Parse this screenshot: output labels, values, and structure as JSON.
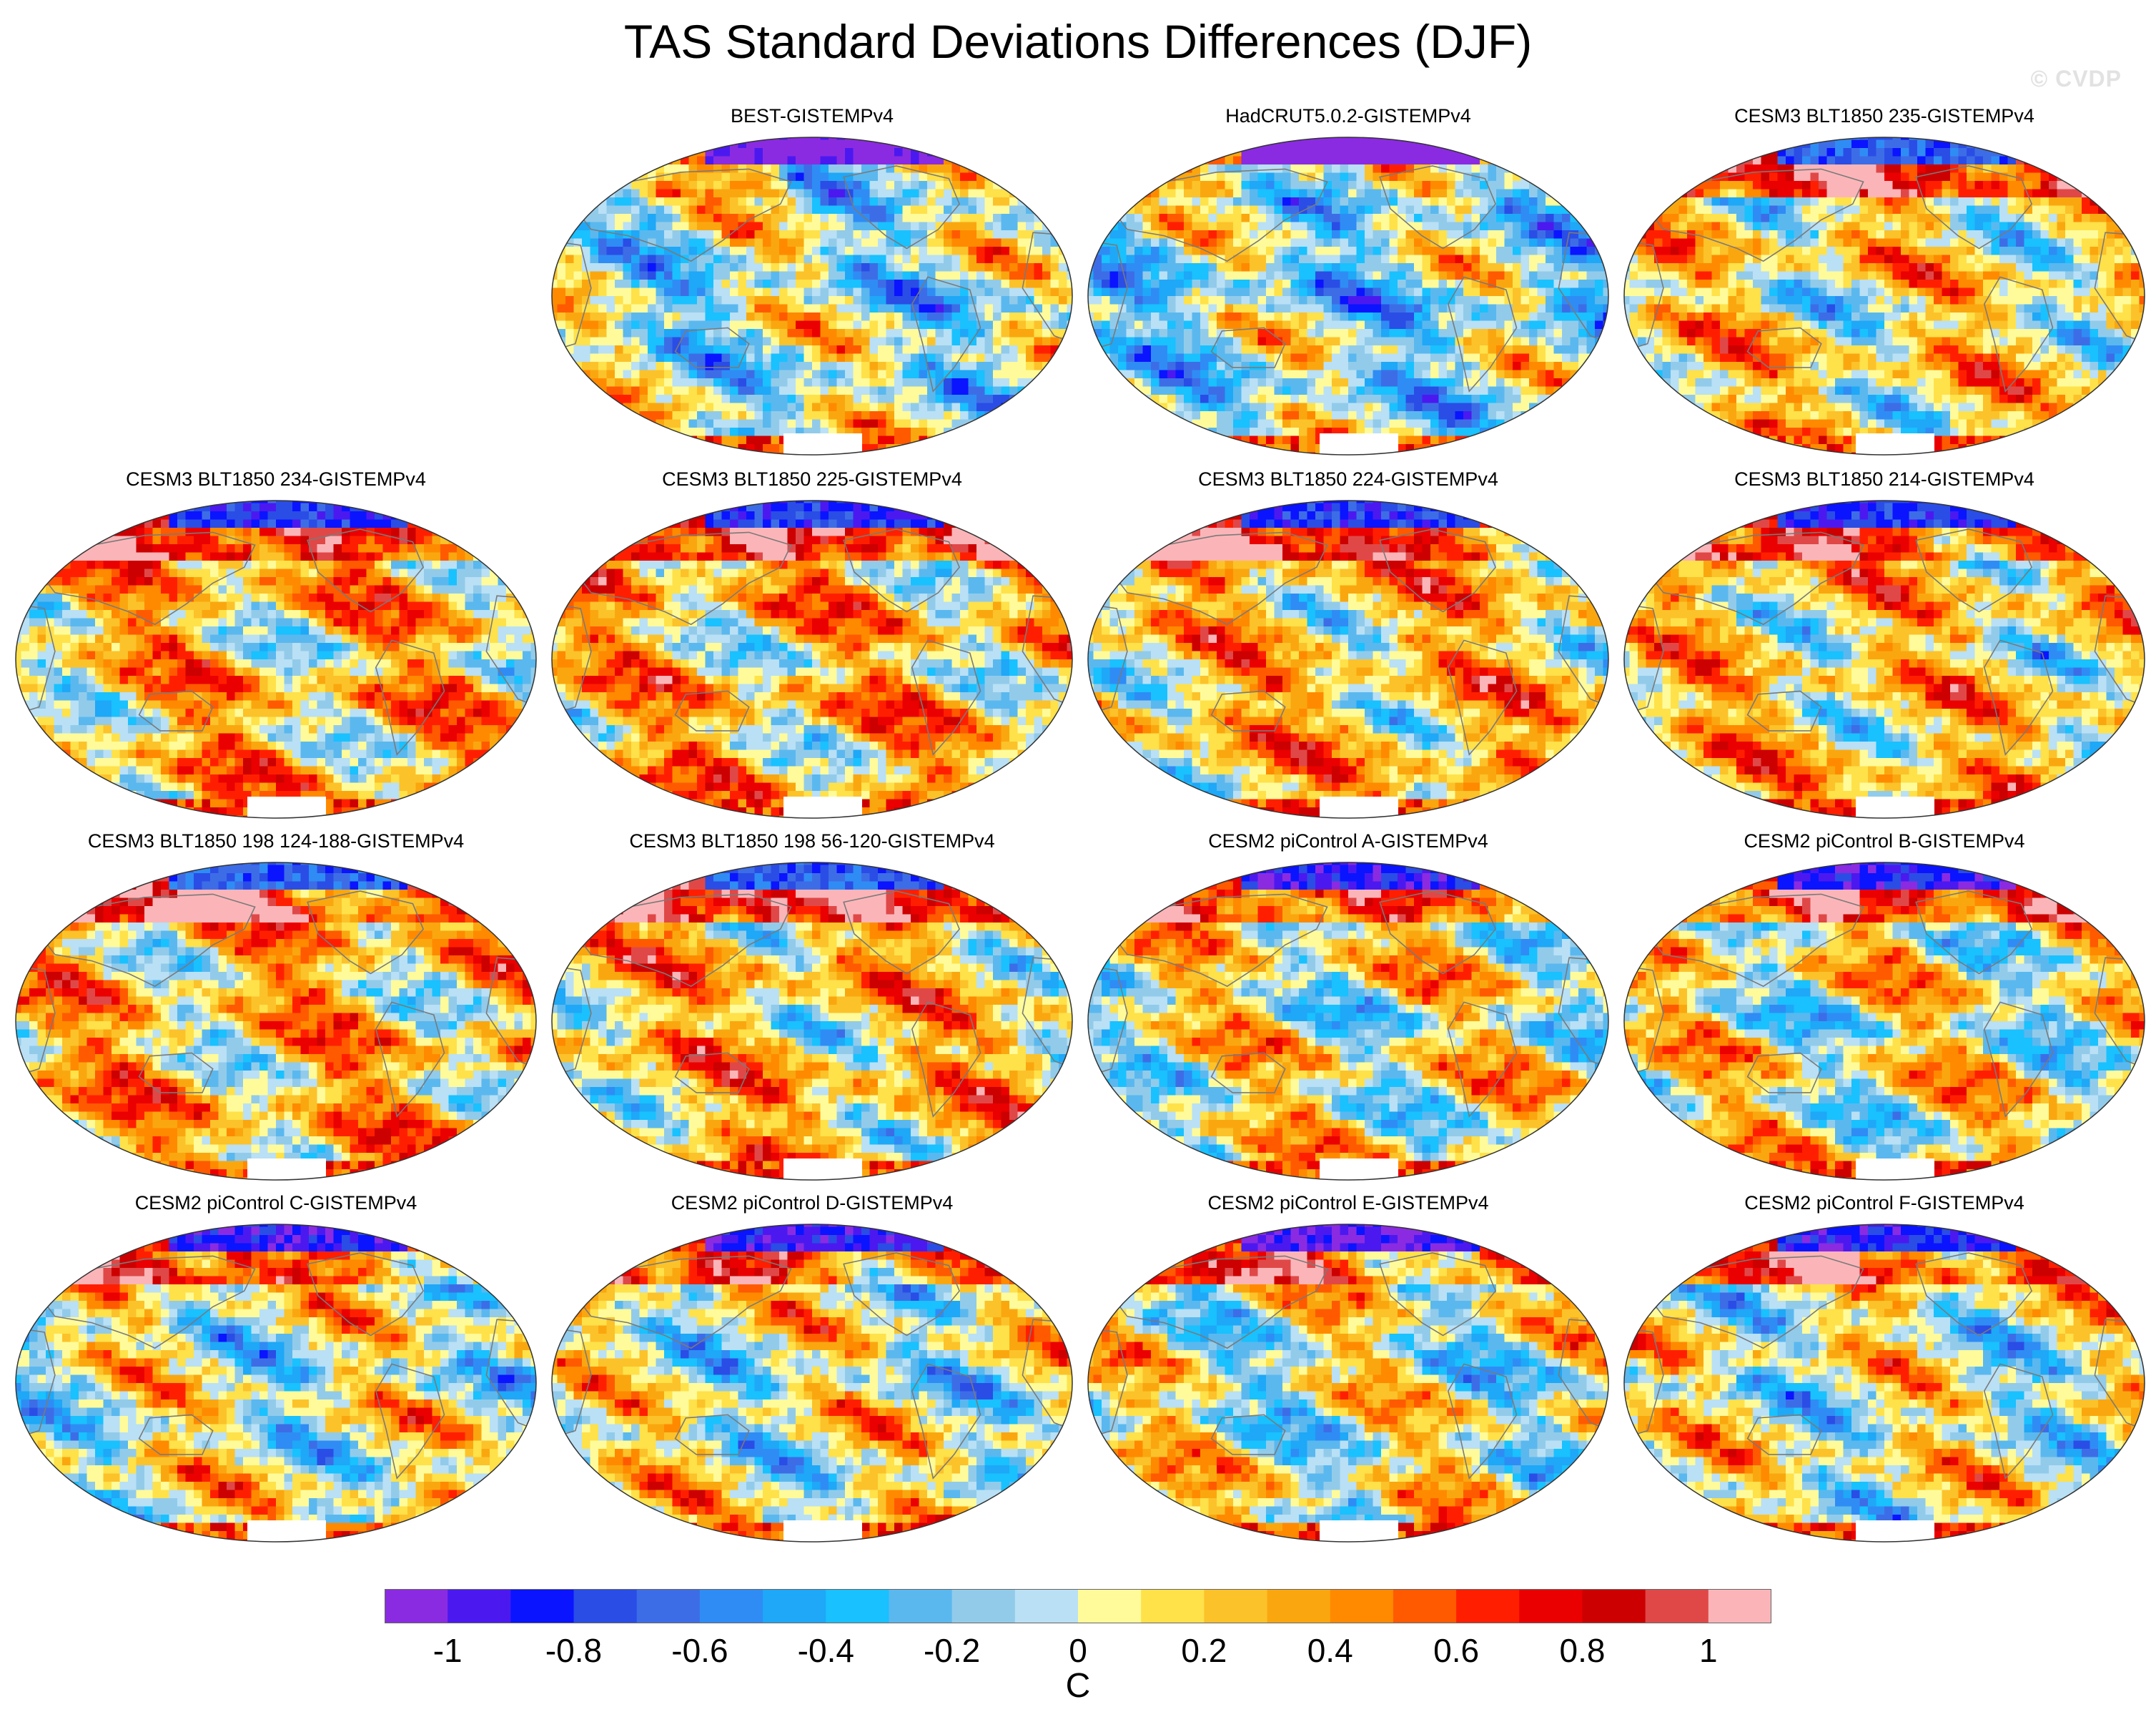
{
  "title": "TAS Standard Deviations Differences (DJF)",
  "watermark": "© CVDP",
  "panels": [
    {
      "label": "BEST-GISTEMPv4",
      "seed": 3,
      "bias": -0.05,
      "arctic": -1.1,
      "cold_ns": true
    },
    {
      "label": "HadCRUT5.0.2-GISTEMPv4",
      "seed": 7,
      "bias": -0.1,
      "arctic": -1.2,
      "cold_ns": true
    },
    {
      "label": "CESM3 BLT1850 235-GISTEMPv4",
      "seed": 11,
      "bias": 0.15,
      "arctic": -0.7,
      "cold_ns": false
    },
    {
      "label": "CESM3 BLT1850 234-GISTEMPv4",
      "seed": 13,
      "bias": 0.25,
      "arctic": -0.8,
      "cold_ns": false
    },
    {
      "label": "CESM3 BLT1850 225-GISTEMPv4",
      "seed": 17,
      "bias": 0.25,
      "arctic": -0.8,
      "cold_ns": false
    },
    {
      "label": "CESM3 BLT1850 224-GISTEMPv4",
      "seed": 19,
      "bias": 0.25,
      "arctic": -0.8,
      "cold_ns": false
    },
    {
      "label": "CESM3 BLT1850 214-GISTEMPv4",
      "seed": 23,
      "bias": 0.2,
      "arctic": -0.8,
      "cold_ns": false
    },
    {
      "label": "CESM3 BLT1850 198 124-188-GISTEMPv4",
      "seed": 29,
      "bias": 0.25,
      "arctic": -0.7,
      "cold_ns": false
    },
    {
      "label": "CESM3 BLT1850 198 56-120-GISTEMPv4",
      "seed": 31,
      "bias": 0.25,
      "arctic": -0.7,
      "cold_ns": false
    },
    {
      "label": "CESM2 piControl A-GISTEMPv4",
      "seed": 37,
      "bias": 0.1,
      "arctic": -0.9,
      "cold_ns": false
    },
    {
      "label": "CESM2 piControl B-GISTEMPv4",
      "seed": 41,
      "bias": 0.1,
      "arctic": -0.9,
      "cold_ns": false
    },
    {
      "label": "CESM2 piControl C-GISTEMPv4",
      "seed": 43,
      "bias": 0.05,
      "arctic": -0.9,
      "cold_ns": false
    },
    {
      "label": "CESM2 piControl D-GISTEMPv4",
      "seed": 47,
      "bias": 0.05,
      "arctic": -0.9,
      "cold_ns": false
    },
    {
      "label": "CESM2 piControl E-GISTEMPv4",
      "seed": 53,
      "bias": 0.05,
      "arctic": -1.0,
      "cold_ns": false
    },
    {
      "label": "CESM2 piControl F-GISTEMPv4",
      "seed": 59,
      "bias": 0.05,
      "arctic": -0.9,
      "cold_ns": false
    }
  ],
  "colorbar": {
    "unit": "C",
    "colors": [
      "#8a2be2",
      "#4b19f0",
      "#0a14ff",
      "#2a4de6",
      "#3d6de6",
      "#2f8cf5",
      "#1ea8f7",
      "#19c1ff",
      "#5ab8ef",
      "#92cbea",
      "#b9e0f5",
      "#fffb9a",
      "#ffe14a",
      "#fcc22a",
      "#faa70f",
      "#ff8a00",
      "#ff5a00",
      "#ff1f00",
      "#ea0000",
      "#cc0000",
      "#e04848",
      "#fbb5b8"
    ],
    "tick_labels": [
      "-1",
      "-0.8",
      "-0.6",
      "-0.4",
      "-0.2",
      "0",
      "0.2",
      "0.4",
      "0.6",
      "0.8",
      "1"
    ],
    "tick_values": [
      -1,
      -0.8,
      -0.6,
      -0.4,
      -0.2,
      0,
      0.2,
      0.4,
      0.6,
      0.8,
      1
    ],
    "range": [
      -1.1,
      1.1
    ]
  }
}
